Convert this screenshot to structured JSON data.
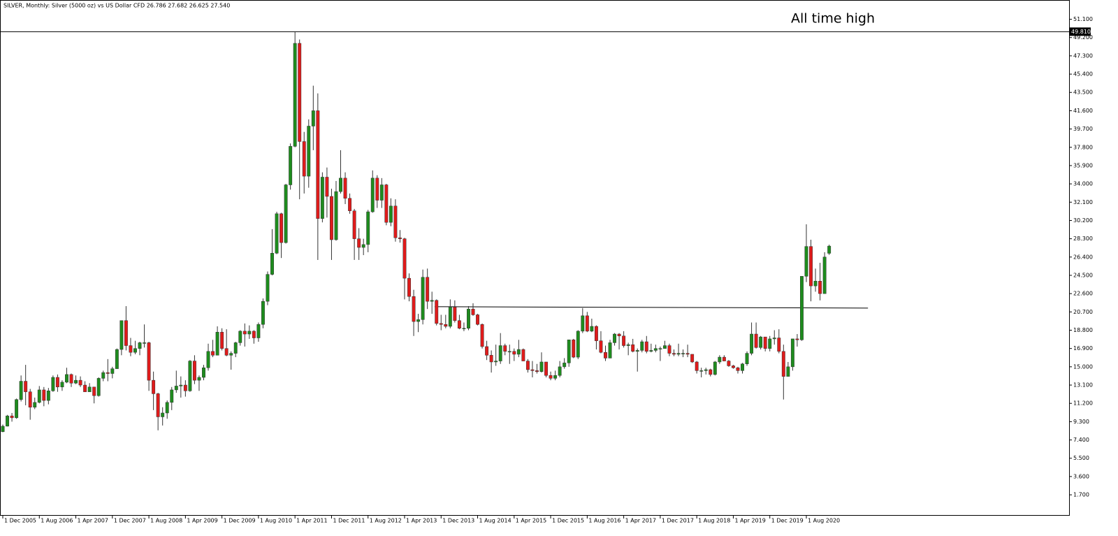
{
  "chart_data": {
    "type": "candlestick",
    "title": "SILVER, Monthly:  Silver (5000 oz) vs US Dollar CFD  26.786 27.682 26.625 27.540",
    "annotation": "All time high",
    "up_color": "#1e8c1e",
    "down_color": "#e01b1b",
    "hline": {
      "value": 49.81,
      "label": "49.810"
    },
    "trendline": {
      "x": [
        94.6,
        189.5
      ],
      "y": [
        21.24,
        21.1
      ]
    },
    "ylim": [
      -0.4,
      53.1
    ],
    "yticks": [
      {
        "value": 1.7,
        "label": "1.700"
      },
      {
        "value": 3.6,
        "label": "3.600"
      },
      {
        "value": 5.5,
        "label": "5.500"
      },
      {
        "value": 7.4,
        "label": "7.400"
      },
      {
        "value": 9.3,
        "label": "9.300"
      },
      {
        "value": 11.2,
        "label": "11.200"
      },
      {
        "value": 13.1,
        "label": "13.100"
      },
      {
        "value": 15.0,
        "label": "15.000"
      },
      {
        "value": 16.9,
        "label": "16.900"
      },
      {
        "value": 18.8,
        "label": "18.800"
      },
      {
        "value": 20.7,
        "label": "20.700"
      },
      {
        "value": 22.6,
        "label": "22.600"
      },
      {
        "value": 24.5,
        "label": "24.500"
      },
      {
        "value": 26.4,
        "label": "26.400"
      },
      {
        "value": 28.3,
        "label": "28.300"
      },
      {
        "value": 30.2,
        "label": "30.200"
      },
      {
        "value": 32.1,
        "label": "32.100"
      },
      {
        "value": 34.0,
        "label": "34.000"
      },
      {
        "value": 35.9,
        "label": "35.900"
      },
      {
        "value": 37.8,
        "label": "37.800"
      },
      {
        "value": 39.7,
        "label": "39.700"
      },
      {
        "value": 41.6,
        "label": "41.600"
      },
      {
        "value": 43.5,
        "label": "43.500"
      },
      {
        "value": 45.4,
        "label": "45.400"
      },
      {
        "value": 47.3,
        "label": "47.300"
      },
      {
        "value": 49.2,
        "label": "49.200"
      },
      {
        "value": 51.1,
        "label": "51.100"
      }
    ],
    "categories": [
      "1 Dec 2005",
      null,
      null,
      null,
      null,
      null,
      null,
      null,
      "1 Aug 2006",
      null,
      null,
      null,
      null,
      null,
      null,
      null,
      "1 Apr 2007",
      null,
      null,
      null,
      null,
      null,
      null,
      null,
      "1 Dec 2007",
      null,
      null,
      null,
      null,
      null,
      null,
      null,
      "1 Aug 2008",
      null,
      null,
      null,
      null,
      null,
      null,
      null,
      "1 Apr 2009",
      null,
      null,
      null,
      null,
      null,
      null,
      null,
      "1 Dec 2009",
      null,
      null,
      null,
      null,
      null,
      null,
      null,
      "1 Aug 2010",
      null,
      null,
      null,
      null,
      null,
      null,
      null,
      "1 Apr 2011",
      null,
      null,
      null,
      null,
      null,
      null,
      null,
      "1 Dec 2011",
      null,
      null,
      null,
      null,
      null,
      null,
      null,
      "1 Aug 2012",
      null,
      null,
      null,
      null,
      null,
      null,
      null,
      "1 Apr 2013",
      null,
      null,
      null,
      null,
      null,
      null,
      null,
      "1 Dec 2013",
      null,
      null,
      null,
      null,
      null,
      null,
      null,
      "1 Aug 2014",
      null,
      null,
      null,
      null,
      null,
      null,
      null,
      "1 Apr 2015",
      null,
      null,
      null,
      null,
      null,
      null,
      null,
      "1 Dec 2015",
      null,
      null,
      null,
      null,
      null,
      null,
      null,
      "1 Aug 2016",
      null,
      null,
      null,
      null,
      null,
      null,
      null,
      "1 Apr 2017",
      null,
      null,
      null,
      null,
      null,
      null,
      null,
      "1 Dec 2017",
      null,
      null,
      null,
      null,
      null,
      null,
      null,
      "1 Aug 2018",
      null,
      null,
      null,
      null,
      null,
      null,
      null,
      "1 Apr 2019",
      null,
      null,
      null,
      null,
      null,
      null,
      null,
      "1 Dec 2019",
      null,
      null,
      null,
      null,
      null,
      null,
      null,
      "1 Aug 2020",
      null,
      null,
      null,
      null,
      null
    ],
    "open": [
      8.26,
      8.83,
      9.9,
      9.7,
      11.6,
      13.5,
      12.4,
      10.8,
      11.3,
      12.6,
      11.5,
      12.5,
      13.9,
      12.9,
      13.4,
      14.2,
      13.3,
      13.6,
      13.1,
      12.4,
      12.9,
      12.0,
      13.8,
      14.4,
      14.3,
      14.8,
      16.8,
      19.8,
      17.2,
      16.5,
      16.9,
      17.5,
      17.5,
      13.6,
      12.2,
      9.8,
      10.2,
      11.3,
      12.6,
      13.0,
      13.1,
      12.5,
      15.6,
      13.6,
      13.9,
      14.9,
      16.6,
      16.2,
      18.6,
      16.9,
      16.2,
      16.4,
      17.5,
      18.7,
      18.4,
      18.7,
      18.0,
      19.4,
      21.8,
      24.6,
      26.8,
      30.9,
      27.9,
      33.9,
      37.9,
      48.6,
      38.4,
      34.8,
      40.0,
      41.6,
      30.4,
      34.7,
      32.7,
      28.2,
      33.2,
      34.6,
      32.5,
      31.2,
      28.3,
      27.4,
      27.7,
      31.1,
      34.6,
      32.3,
      33.9,
      30.0,
      31.7,
      28.4,
      28.3,
      24.2,
      22.3,
      19.7,
      19.9,
      24.3,
      21.8,
      21.9,
      19.5,
      19.4,
      19.2,
      21.2,
      19.8,
      19.0,
      19.0,
      21.0,
      20.4,
      19.4,
      17.1,
      16.2,
      15.5,
      15.6,
      17.2,
      16.6,
      16.6,
      16.3,
      16.8,
      15.6,
      14.7,
      14.6,
      14.5,
      15.5,
      14.1,
      13.8,
      14.1,
      15.0,
      15.4,
      17.8,
      16.0,
      18.7,
      20.3,
      18.7,
      19.2,
      17.7,
      16.5,
      15.9,
      17.5,
      18.4,
      18.2,
      17.2,
      17.3,
      16.6,
      16.7,
      17.6,
      16.6,
      16.7,
      16.9,
      16.9,
      17.2,
      16.4,
      16.3,
      16.4,
      16.4,
      16.3,
      15.5,
      14.6,
      14.6,
      14.7,
      14.2,
      15.5,
      16.0,
      15.6,
      15.1,
      14.9,
      14.6,
      15.3,
      16.4,
      18.4,
      17.0,
      18.1,
      16.9,
      17.9,
      18.0,
      16.6,
      14.0,
      15.0,
      17.9,
      17.8,
      24.4,
      27.5,
      23.4,
      23.9,
      22.6,
      26.786
    ],
    "high": [
      9.0,
      10.0,
      10.2,
      11.7,
      14.1,
      15.2,
      12.7,
      11.8,
      13.0,
      12.9,
      12.8,
      14.1,
      14.2,
      13.6,
      14.9,
      14.3,
      14.1,
      14.0,
      13.5,
      13.3,
      12.9,
      13.9,
      14.6,
      15.8,
      15.0,
      16.9,
      19.8,
      21.3,
      18.0,
      17.7,
      17.6,
      19.4,
      17.6,
      14.5,
      12.3,
      10.8,
      11.5,
      12.9,
      14.6,
      14.0,
      13.6,
      15.7,
      16.2,
      14.1,
      15.2,
      17.4,
      17.8,
      19.2,
      19.0,
      18.9,
      16.6,
      17.6,
      18.8,
      19.5,
      19.3,
      18.8,
      19.6,
      22.1,
      24.9,
      29.3,
      31.1,
      31.0,
      34.0,
      38.2,
      49.8,
      49.0,
      39.4,
      40.7,
      44.2,
      43.4,
      35.2,
      35.7,
      33.5,
      34.3,
      37.5,
      35.2,
      33.0,
      31.4,
      29.4,
      28.3,
      31.3,
      35.4,
      34.9,
      34.6,
      34.0,
      32.5,
      32.4,
      29.2,
      28.4,
      24.7,
      23.0,
      20.5,
      25.1,
      25.2,
      22.8,
      22.0,
      20.4,
      20.4,
      22.0,
      21.9,
      20.4,
      19.6,
      21.3,
      21.6,
      20.5,
      19.5,
      17.7,
      16.7,
      17.3,
      18.5,
      17.4,
      17.3,
      16.9,
      17.8,
      16.9,
      15.8,
      15.6,
      15.3,
      16.5,
      15.5,
      14.5,
      14.6,
      15.6,
      15.9,
      17.8,
      17.9,
      18.8,
      21.1,
      20.7,
      20.0,
      19.3,
      18.7,
      17.2,
      17.8,
      18.5,
      18.5,
      18.7,
      17.5,
      17.9,
      16.9,
      17.8,
      18.2,
      17.4,
      17.3,
      17.1,
      17.7,
      17.4,
      16.8,
      17.4,
      16.8,
      17.3,
      16.3,
      15.6,
      14.9,
      14.9,
      14.8,
      15.6,
      16.2,
      16.2,
      15.7,
      15.2,
      15.0,
      15.4,
      16.6,
      19.6,
      19.6,
      18.2,
      18.1,
      18.2,
      18.8,
      18.9,
      17.3,
      15.5,
      17.9,
      18.4,
      24.4,
      29.8,
      28.2,
      25.2,
      25.8,
      26.9,
      27.682
    ],
    "low": [
      8.2,
      8.8,
      9.3,
      9.6,
      11.4,
      11.0,
      9.5,
      10.6,
      11.2,
      10.9,
      11.1,
      12.4,
      12.4,
      12.5,
      13.3,
      12.9,
      13.2,
      12.9,
      12.4,
      12.4,
      11.2,
      11.9,
      13.5,
      13.5,
      13.8,
      14.8,
      16.2,
      16.7,
      16.1,
      16.3,
      16.2,
      17.0,
      12.5,
      10.5,
      8.4,
      8.9,
      9.6,
      10.5,
      12.3,
      11.8,
      11.9,
      12.4,
      13.2,
      12.5,
      13.6,
      14.6,
      16.0,
      16.2,
      16.7,
      16.1,
      14.7,
      16.0,
      17.2,
      17.1,
      17.9,
      17.4,
      17.6,
      19.0,
      21.4,
      24.5,
      26.7,
      26.3,
      27.8,
      33.4,
      37.8,
      32.4,
      33.0,
      33.6,
      37.5,
      26.1,
      30.0,
      30.5,
      26.1,
      28.1,
      33.0,
      31.9,
      30.9,
      26.1,
      26.1,
      26.6,
      26.9,
      31.0,
      31.5,
      31.5,
      29.7,
      29.6,
      28.0,
      27.9,
      22.0,
      21.8,
      18.2,
      18.6,
      19.4,
      21.0,
      20.5,
      19.3,
      18.8,
      19.0,
      19.0,
      19.6,
      18.9,
      18.7,
      18.8,
      20.3,
      19.3,
      16.9,
      15.7,
      14.4,
      15.1,
      15.3,
      16.2,
      15.3,
      15.6,
      16.0,
      15.6,
      14.4,
      13.9,
      14.3,
      14.4,
      13.9,
      13.6,
      13.6,
      13.9,
      14.8,
      15.0,
      15.9,
      15.8,
      18.5,
      18.6,
      18.6,
      16.8,
      16.4,
      15.6,
      15.9,
      17.2,
      16.8,
      17.0,
      16.2,
      16.5,
      14.5,
      16.5,
      16.4,
      16.5,
      16.5,
      15.6,
      16.9,
      16.1,
      16.1,
      16.1,
      16.0,
      16.0,
      15.4,
      14.3,
      13.9,
      14.2,
      14.0,
      14.1,
      15.3,
      15.6,
      15.0,
      14.8,
      14.3,
      14.3,
      15.1,
      16.2,
      16.9,
      16.8,
      16.6,
      16.6,
      17.3,
      16.4,
      11.6,
      14.0,
      14.6,
      17.1,
      17.7,
      23.8,
      21.8,
      22.8,
      21.9,
      22.6,
      26.625
    ],
    "close": [
      8.83,
      9.9,
      9.7,
      11.6,
      13.5,
      12.4,
      10.8,
      11.3,
      12.6,
      11.5,
      12.5,
      13.9,
      12.9,
      13.4,
      14.2,
      13.3,
      13.6,
      13.1,
      12.4,
      12.9,
      12.0,
      13.8,
      14.4,
      14.3,
      14.8,
      16.8,
      19.8,
      17.2,
      16.5,
      16.9,
      17.5,
      17.5,
      13.6,
      12.2,
      9.8,
      10.2,
      11.3,
      12.6,
      13.0,
      13.1,
      12.5,
      15.6,
      13.6,
      13.9,
      14.9,
      16.6,
      16.2,
      18.6,
      16.9,
      16.2,
      16.4,
      17.5,
      18.7,
      18.4,
      18.7,
      18.0,
      19.4,
      21.8,
      24.6,
      26.8,
      30.9,
      27.9,
      33.9,
      37.9,
      48.6,
      38.4,
      34.8,
      40.0,
      41.6,
      30.4,
      34.7,
      32.7,
      28.2,
      33.2,
      34.6,
      32.5,
      31.2,
      28.3,
      27.4,
      27.7,
      31.1,
      34.6,
      32.3,
      33.9,
      30.0,
      31.7,
      28.4,
      28.3,
      24.2,
      22.3,
      19.7,
      19.9,
      24.3,
      21.8,
      21.9,
      19.5,
      19.4,
      19.2,
      21.2,
      19.8,
      19.0,
      19.0,
      21.0,
      20.4,
      19.4,
      17.1,
      16.2,
      15.5,
      15.6,
      17.2,
      16.6,
      16.6,
      16.3,
      16.8,
      15.6,
      14.7,
      14.6,
      14.5,
      15.5,
      14.1,
      13.8,
      14.1,
      15.0,
      15.4,
      17.8,
      16.0,
      18.7,
      20.3,
      18.7,
      19.2,
      17.7,
      16.5,
      15.9,
      17.5,
      18.4,
      18.2,
      17.2,
      17.3,
      16.6,
      16.7,
      17.6,
      16.6,
      16.7,
      16.9,
      16.9,
      17.2,
      16.4,
      16.3,
      16.4,
      16.4,
      16.3,
      15.5,
      14.6,
      14.6,
      14.7,
      14.2,
      15.5,
      16.0,
      15.6,
      15.1,
      14.9,
      14.6,
      15.3,
      16.4,
      18.4,
      17.0,
      18.1,
      16.9,
      17.9,
      18.0,
      16.6,
      14.0,
      15.0,
      17.9,
      17.8,
      24.4,
      27.5,
      23.4,
      23.9,
      22.6,
      26.4,
      27.54
    ]
  }
}
